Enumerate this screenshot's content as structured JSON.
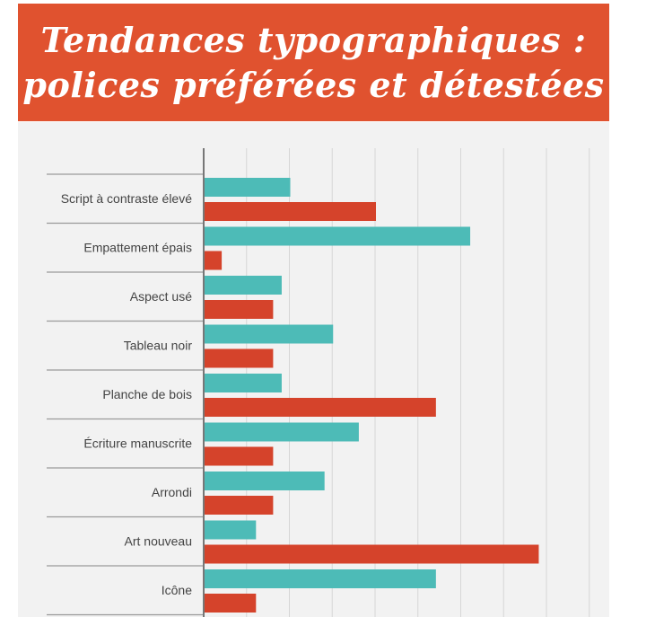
{
  "title": {
    "line1": "Tendances typographiques :",
    "line2": "polices préférées et détestées"
  },
  "colors": {
    "banner": "#e0522f",
    "preferred": "#4dbbb7",
    "disliked": "#d5432b",
    "panel": "#f2f2f2",
    "grid": "#d6d6d6"
  },
  "chart_data": {
    "type": "bar",
    "orientation": "horizontal",
    "title": "Tendances typographiques : polices préférées et détestées",
    "categories": [
      "Script à contraste élevé",
      "Empattement épais",
      "Aspect usé",
      "Tableau noir",
      "Planche de bois",
      "Écriture manuscrite",
      "Arrondi",
      "Art nouveau",
      "Icône"
    ],
    "series": [
      {
        "values": [
          10,
          31,
          9,
          15,
          9,
          18,
          14,
          6,
          27
        ]
      },
      {
        "values": [
          20,
          2,
          8,
          8,
          27,
          8,
          8,
          39,
          6
        ]
      }
    ],
    "xlim": [
      0,
      45
    ],
    "grid": true,
    "legend": "none"
  }
}
